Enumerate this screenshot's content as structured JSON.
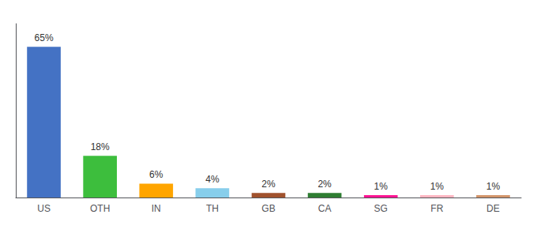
{
  "chart_data": {
    "type": "bar",
    "categories": [
      "US",
      "OTH",
      "IN",
      "TH",
      "GB",
      "CA",
      "SG",
      "FR",
      "DE"
    ],
    "values": [
      65,
      18,
      6,
      4,
      2,
      2,
      1,
      1,
      1
    ],
    "value_labels": [
      "65%",
      "18%",
      "6%",
      "4%",
      "2%",
      "2%",
      "1%",
      "1%",
      "1%"
    ],
    "colors": [
      "#4472C4",
      "#3DBE3D",
      "#FFA500",
      "#87CEEB",
      "#A0522D",
      "#2E7D32",
      "#FF1493",
      "#FFB6C1",
      "#D2956B"
    ],
    "ylim": [
      0,
      75
    ],
    "data_labels": true,
    "tick_labels": "x",
    "grid": false
  }
}
